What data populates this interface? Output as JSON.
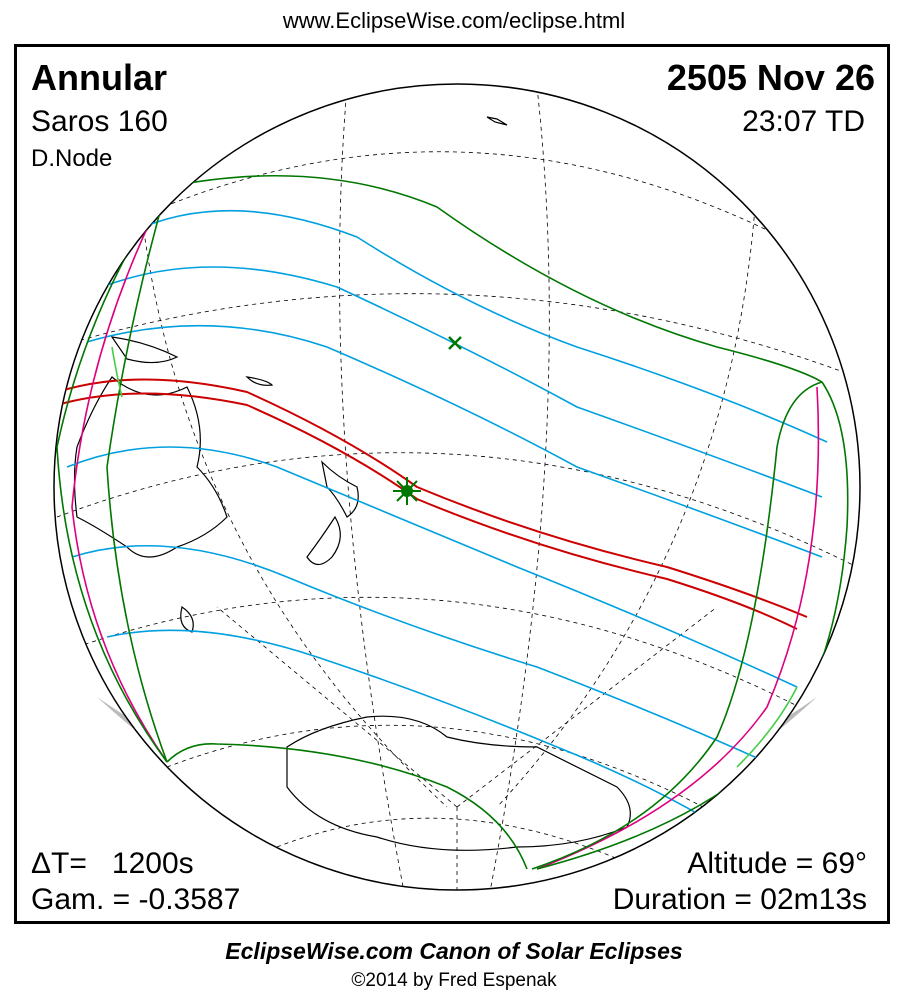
{
  "header_url": "www.EclipseWise.com/eclipse.html",
  "eclipse": {
    "type": "Annular",
    "date": "2505 Nov 26",
    "saros": "Saros 160",
    "time": "23:07 TD",
    "node": "D.Node",
    "delta_t": "ΔT=   1200s",
    "gamma": "Gam. = -0.3587",
    "altitude": "Altitude = 69°",
    "duration": "Duration = 02m13s"
  },
  "footer": {
    "title": "EclipseWise.com Canon of Solar Eclipses",
    "copyright": "©2014 by Fred Espenak"
  },
  "colors": {
    "central_path": "#cc0000",
    "penumbral_limits": "#007700",
    "partial_lines": "#00a0e0",
    "rise_set_curves": "#dd0080",
    "coastline": "#000000",
    "graticule": "#000000",
    "shadow": "#bbbbbb",
    "light_green": "#44cc44"
  },
  "icons": {
    "greatest_eclipse": "star-marker-icon",
    "subsolar_point": "x-marker-icon"
  }
}
